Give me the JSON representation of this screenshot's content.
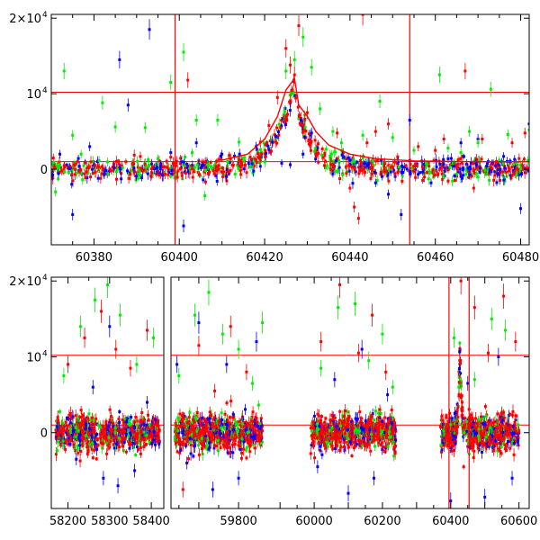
{
  "chart_data": [
    {
      "type": "scatter",
      "panel": "top",
      "title": "",
      "xlabel": "",
      "ylabel": "",
      "xlim": [
        60370,
        60482
      ],
      "ylim": [
        -10000,
        20500
      ],
      "xticks": [
        60380,
        60400,
        60420,
        60440,
        60460,
        60480
      ],
      "yticks": [
        {
          "value": 0,
          "label": "0"
        },
        {
          "value": 10000,
          "label": "10",
          "exp": "4"
        },
        {
          "value": 20000,
          "label": "2×10",
          "exp": "4"
        }
      ],
      "vlines": [
        60399,
        60454
      ],
      "hlines": [
        1000,
        10200
      ],
      "colors": {
        "series_a": "#ff0000",
        "series_b": "#0000ff",
        "series_c": "#00ee00"
      },
      "series": [
        {
          "color": "#0000ff",
          "points": [
            [
              60372,
              2000
            ],
            [
              60375,
              -6000
            ],
            [
              60379,
              3000
            ],
            [
              60381,
              -1200
            ],
            [
              60386,
              14500
            ],
            [
              60388,
              8500
            ],
            [
              60393,
              18500
            ],
            [
              60398,
              2200
            ],
            [
              60401,
              -7500
            ],
            [
              60404,
              3500
            ],
            [
              60410,
              2000
            ],
            [
              60418,
              3000
            ],
            [
              60421,
              2600
            ],
            [
              60424,
              800
            ],
            [
              60426,
              600
            ],
            [
              60429,
              2000
            ],
            [
              60431,
              4800
            ],
            [
              60436,
              -600
            ],
            [
              60441,
              800
            ],
            [
              60444,
              500
            ],
            [
              60446,
              -1800
            ],
            [
              60449,
              -3300
            ],
            [
              60452,
              -6000
            ],
            [
              60454,
              6500
            ],
            [
              60459,
              -1800
            ],
            [
              60463,
              1400
            ],
            [
              60466,
              3500
            ],
            [
              60470,
              4000
            ],
            [
              60472,
              400
            ],
            [
              60476,
              1700
            ],
            [
              60480,
              -5200
            ],
            [
              60482,
              6000
            ]
          ]
        },
        {
          "color": "#00ee00",
          "points": [
            [
              60371,
              -3000
            ],
            [
              60372,
              500
            ],
            [
              60373,
              13000
            ],
            [
              60375,
              4500
            ],
            [
              60377,
              2000
            ],
            [
              60382,
              8800
            ],
            [
              60385,
              5600
            ],
            [
              60389,
              500
            ],
            [
              60392,
              5500
            ],
            [
              60395,
              1400
            ],
            [
              60398,
              11500
            ],
            [
              60401,
              15500
            ],
            [
              60403,
              2200
            ],
            [
              60404,
              6500
            ],
            [
              60406,
              -3500
            ],
            [
              60409,
              6500
            ],
            [
              60414,
              3600
            ],
            [
              60425,
              13000
            ],
            [
              60427,
              14500
            ],
            [
              60429,
              17500
            ],
            [
              60431,
              13500
            ],
            [
              60433,
              8000
            ],
            [
              60436,
              5000
            ],
            [
              60438,
              3500
            ],
            [
              60441,
              1000
            ],
            [
              60443,
              4500
            ],
            [
              60447,
              9000
            ],
            [
              60450,
              4200
            ],
            [
              60455,
              2500
            ],
            [
              60461,
              12500
            ],
            [
              60463,
              2800
            ],
            [
              60466,
              2200
            ],
            [
              60468,
              5000
            ],
            [
              60470,
              3500
            ],
            [
              60473,
              10600
            ],
            [
              60475,
              1200
            ],
            [
              60477,
              4600
            ],
            [
              60479,
              -800
            ],
            [
              60482,
              5200
            ]
          ]
        },
        {
          "color": "#ff0000",
          "points": [
            [
              60373,
              500
            ],
            [
              60384,
              -200
            ],
            [
              60389,
              700
            ],
            [
              60398,
              1600
            ],
            [
              60402,
              11800
            ],
            [
              60408,
              -200
            ],
            [
              60414,
              1200
            ],
            [
              60419,
              3600
            ],
            [
              60421,
              5800
            ],
            [
              60423,
              9500
            ],
            [
              60425,
              16000
            ],
            [
              60426,
              13800
            ],
            [
              60427,
              12500
            ],
            [
              60428,
              19000
            ],
            [
              60430,
              7500
            ],
            [
              60432,
              2000
            ],
            [
              60434,
              500
            ],
            [
              60437,
              4800
            ],
            [
              60440,
              -2500
            ],
            [
              60441,
              -5000
            ],
            [
              60442,
              -6500
            ],
            [
              60443,
              20500
            ],
            [
              60444,
              3500
            ],
            [
              60446,
              5000
            ],
            [
              60449,
              6000
            ],
            [
              60456,
              3000
            ],
            [
              60460,
              2500
            ],
            [
              60462,
              4000
            ],
            [
              60467,
              13000
            ],
            [
              60469,
              -2500
            ],
            [
              60471,
              4000
            ],
            [
              60474,
              -800
            ],
            [
              60478,
              3500
            ],
            [
              60481,
              4800
            ]
          ]
        }
      ],
      "model_curve": [
        [
          60410,
          1200
        ],
        [
          60416,
          2000
        ],
        [
          60420,
          4000
        ],
        [
          60423,
          7000
        ],
        [
          60425,
          10500
        ],
        [
          60427,
          12000
        ],
        [
          60428,
          8500
        ],
        [
          60430,
          7000
        ],
        [
          60432,
          5000
        ],
        [
          60435,
          3200
        ],
        [
          60440,
          2000
        ],
        [
          60446,
          1400
        ],
        [
          60455,
          1100
        ],
        [
          60470,
          1000
        ],
        [
          60482,
          1000
        ]
      ]
    },
    {
      "type": "scatter",
      "panel": "bottom",
      "title": "",
      "xlabel": "",
      "ylabel": "",
      "segments": [
        {
          "xlim": [
            58160,
            58430
          ],
          "xticks": [
            58200,
            58300,
            58400
          ],
          "center": 58300
        },
        {
          "xlim": [
            59630,
            59870
          ],
          "xticks": [
            59800
          ],
          "center": 59750
        },
        {
          "xlim": [
            59860,
            60630
          ],
          "xticks": [
            60000,
            60200,
            60400,
            60600
          ],
          "center": 60150
        }
      ],
      "ylim": [
        -10000,
        20500
      ],
      "yticks": [
        {
          "value": 0,
          "label": "0"
        },
        {
          "value": 10000,
          "label": "10",
          "exp": "4"
        },
        {
          "value": 20000,
          "label": "2×10",
          "exp": "4"
        }
      ],
      "hlines": [
        1000,
        10200
      ],
      "colors": {
        "series_a": "#ff0000",
        "series_b": "#0000ff",
        "series_c": "#00ee00"
      },
      "series": [
        {
          "color": "#0000ff",
          "points": [
            [
              58220,
              -3500
            ],
            [
              58260,
              6000
            ],
            [
              58285,
              -6000
            ],
            [
              58300,
              14000
            ],
            [
              58320,
              -7000
            ],
            [
              58360,
              -5000
            ],
            [
              58390,
              4000
            ],
            [
              59645,
              9000
            ],
            [
              59670,
              -4000
            ],
            [
              59700,
              14500
            ],
            [
              59735,
              -7500
            ],
            [
              59770,
              9000
            ],
            [
              59800,
              -6000
            ],
            [
              59845,
              12000
            ],
            [
              60010,
              -4500
            ],
            [
              60060,
              7000
            ],
            [
              60100,
              -8000
            ],
            [
              60140,
              11000
            ],
            [
              60175,
              -6000
            ],
            [
              60215,
              5000
            ],
            [
              60400,
              -9000
            ],
            [
              60450,
              6500
            ],
            [
              60500,
              -8500
            ],
            [
              60540,
              10000
            ],
            [
              60580,
              -6000
            ]
          ]
        },
        {
          "color": "#00ee00",
          "points": [
            [
              58190,
              7500
            ],
            [
              58230,
              14000
            ],
            [
              58265,
              17500
            ],
            [
              58295,
              19500
            ],
            [
              58325,
              15500
            ],
            [
              58365,
              9000
            ],
            [
              58405,
              12500
            ],
            [
              59650,
              7500
            ],
            [
              59690,
              15500
            ],
            [
              59725,
              18500
            ],
            [
              59760,
              13000
            ],
            [
              59800,
              11000
            ],
            [
              59835,
              6500
            ],
            [
              59860,
              14500
            ],
            [
              60020,
              8500
            ],
            [
              60070,
              16500
            ],
            [
              60120,
              17000
            ],
            [
              60160,
              9500
            ],
            [
              60200,
              13000
            ],
            [
              60230,
              6000
            ],
            [
              60410,
              12500
            ],
            [
              60470,
              7000
            ],
            [
              60520,
              15000
            ],
            [
              60560,
              13500
            ]
          ]
        },
        {
          "color": "#ff0000",
          "points": [
            [
              58200,
              9000
            ],
            [
              58240,
              12500
            ],
            [
              58280,
              16000
            ],
            [
              58315,
              11000
            ],
            [
              58350,
              8500
            ],
            [
              58390,
              13500
            ],
            [
              59660,
              -7500
            ],
            [
              59700,
              11500
            ],
            [
              59740,
              5500
            ],
            [
              59780,
              14000
            ],
            [
              59820,
              8000
            ],
            [
              60020,
              12000
            ],
            [
              60075,
              19500
            ],
            [
              60130,
              10500
            ],
            [
              60170,
              15500
            ],
            [
              60210,
              8000
            ],
            [
              60430,
              20000
            ],
            [
              60470,
              16500
            ],
            [
              60510,
              10500
            ],
            [
              60555,
              18000
            ],
            [
              60590,
              12000
            ]
          ]
        }
      ]
    }
  ]
}
